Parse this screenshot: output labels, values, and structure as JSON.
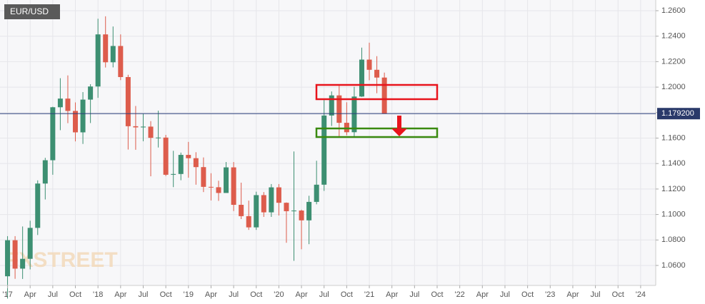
{
  "chart_data": {
    "type": "candlestick",
    "title": "EUR/USD",
    "watermark": "FXSTREET",
    "x": [
      "2017-01",
      "2017-02",
      "2017-03",
      "2017-04",
      "2017-05",
      "2017-06",
      "2017-07",
      "2017-08",
      "2017-09",
      "2017-10",
      "2017-11",
      "2017-12",
      "2018-01",
      "2018-02",
      "2018-03",
      "2018-04",
      "2018-05",
      "2018-06",
      "2018-07",
      "2018-08",
      "2018-09",
      "2018-10",
      "2018-11",
      "2018-12",
      "2019-01",
      "2019-02",
      "2019-03",
      "2019-04",
      "2019-05",
      "2019-06",
      "2019-07",
      "2019-08",
      "2019-09",
      "2019-10",
      "2019-11",
      "2019-12",
      "2020-01",
      "2020-02",
      "2020-03",
      "2020-04",
      "2020-05",
      "2020-06",
      "2020-07",
      "2020-08",
      "2020-09",
      "2020-10",
      "2020-11",
      "2020-12",
      "2021-01",
      "2021-02",
      "2021-03"
    ],
    "open": [
      1.0515,
      1.0798,
      1.0575,
      1.0652,
      1.0895,
      1.1243,
      1.1426,
      1.1842,
      1.191,
      1.1813,
      1.1645,
      1.1902,
      1.2005,
      1.2414,
      1.2195,
      1.2323,
      1.2079,
      1.1693,
      1.1684,
      1.169,
      1.1602,
      1.1604,
      1.1312,
      1.1318,
      1.1468,
      1.1442,
      1.1372,
      1.1217,
      1.1214,
      1.1169,
      1.137,
      1.1076,
      1.0987,
      1.0899,
      1.1152,
      1.1017,
      1.1213,
      1.1092,
      1.1026,
      1.1031,
      1.0954,
      1.1099,
      1.1234,
      1.1777,
      1.1935,
      1.172,
      1.1646,
      1.1926,
      1.2216,
      1.2136,
      1.2075
    ],
    "high": [
      1.083,
      1.083,
      1.0906,
      1.0951,
      1.1268,
      1.1445,
      1.1846,
      1.207,
      1.2092,
      1.188,
      1.1961,
      1.2023,
      1.2537,
      1.2556,
      1.2476,
      1.2414,
      1.2097,
      1.1852,
      1.1791,
      1.1733,
      1.1815,
      1.1625,
      1.15,
      1.1486,
      1.157,
      1.1489,
      1.1448,
      1.1324,
      1.1265,
      1.1412,
      1.1412,
      1.125,
      1.1109,
      1.1179,
      1.1176,
      1.1239,
      1.1239,
      1.1095,
      1.1495,
      1.1038,
      1.1147,
      1.1422,
      1.1908,
      1.1966,
      1.2011,
      1.1881,
      1.2003,
      1.231,
      1.2349,
      1.2243,
      1.2114
    ],
    "low": [
      1.034,
      1.0495,
      1.0494,
      1.0569,
      1.0839,
      1.1118,
      1.1312,
      1.1662,
      1.1717,
      1.1574,
      1.1554,
      1.1718,
      1.1916,
      1.2154,
      1.2155,
      1.2055,
      1.151,
      1.1508,
      1.1575,
      1.13,
      1.1526,
      1.1302,
      1.1215,
      1.1269,
      1.1289,
      1.1234,
      1.1176,
      1.111,
      1.1107,
      1.1181,
      1.1027,
      1.0964,
      1.0879,
      1.0879,
      1.0981,
      1.0981,
      1.0992,
      1.0778,
      1.0636,
      1.0727,
      1.0767,
      1.108,
      1.1185,
      1.1695,
      1.1612,
      1.1622,
      1.1603,
      1.1923,
      1.2054,
      1.1952,
      1.1792
    ],
    "close": [
      1.0798,
      1.0575,
      1.0652,
      1.0895,
      1.1243,
      1.1426,
      1.1842,
      1.191,
      1.1813,
      1.1645,
      1.1902,
      1.2005,
      1.2414,
      1.2195,
      1.2323,
      1.2079,
      1.1693,
      1.1684,
      1.169,
      1.1602,
      1.1604,
      1.1312,
      1.1318,
      1.1468,
      1.1442,
      1.1372,
      1.1217,
      1.1214,
      1.1169,
      1.137,
      1.1076,
      1.0987,
      1.0899,
      1.1152,
      1.1017,
      1.1213,
      1.1092,
      1.1026,
      1.1031,
      1.0954,
      1.1099,
      1.1234,
      1.1777,
      1.1935,
      1.172,
      1.1646,
      1.1926,
      1.2216,
      1.2136,
      1.2075,
      1.1792
    ],
    "up_color": "#3d8f72",
    "down_color": "#dd5c4c",
    "last_price": {
      "value": 1.1792,
      "label": "1.179200"
    },
    "xlim": [
      "2016-12",
      "2024-03"
    ],
    "xticks": [
      {
        "value": "2017-01",
        "label": "'17"
      },
      {
        "value": "2017-04",
        "label": "Apr"
      },
      {
        "value": "2017-07",
        "label": "Jul"
      },
      {
        "value": "2017-10",
        "label": "Oct"
      },
      {
        "value": "2018-01",
        "label": "'18"
      },
      {
        "value": "2018-04",
        "label": "Apr"
      },
      {
        "value": "2018-07",
        "label": "Jul"
      },
      {
        "value": "2018-10",
        "label": "Oct"
      },
      {
        "value": "2019-01",
        "label": "'19"
      },
      {
        "value": "2019-04",
        "label": "Apr"
      },
      {
        "value": "2019-07",
        "label": "Jul"
      },
      {
        "value": "2019-10",
        "label": "Oct"
      },
      {
        "value": "2020-01",
        "label": "'20"
      },
      {
        "value": "2020-04",
        "label": "Apr"
      },
      {
        "value": "2020-07",
        "label": "Jul"
      },
      {
        "value": "2020-10",
        "label": "Oct"
      },
      {
        "value": "2021-01",
        "label": "'21"
      },
      {
        "value": "2021-04",
        "label": "Apr"
      },
      {
        "value": "2021-07",
        "label": "Jul"
      },
      {
        "value": "2021-10",
        "label": "Oct"
      },
      {
        "value": "2022-01",
        "label": "'22"
      },
      {
        "value": "2022-04",
        "label": "Apr"
      },
      {
        "value": "2022-07",
        "label": "Jul"
      },
      {
        "value": "2022-10",
        "label": "Oct"
      },
      {
        "value": "2023-01",
        "label": "'23"
      },
      {
        "value": "2023-04",
        "label": "Apr"
      },
      {
        "value": "2023-07",
        "label": "Jul"
      },
      {
        "value": "2023-10",
        "label": "Oct"
      },
      {
        "value": "2024-01",
        "label": "'24"
      }
    ],
    "ylim": [
      1.0443,
      1.2684
    ],
    "yticks": [
      {
        "value": 1.06,
        "label": "1.0600"
      },
      {
        "value": 1.08,
        "label": "1.0800"
      },
      {
        "value": 1.1,
        "label": "1.1000"
      },
      {
        "value": 1.12,
        "label": "1.1200"
      },
      {
        "value": 1.14,
        "label": "1.1400"
      },
      {
        "value": 1.16,
        "label": "1.1600"
      },
      {
        "value": 1.18,
        "label": "1.1800"
      },
      {
        "value": 1.2,
        "label": "1.2000"
      },
      {
        "value": 1.22,
        "label": "1.2200"
      },
      {
        "value": 1.24,
        "label": "1.2400"
      },
      {
        "value": 1.26,
        "label": "1.2600"
      }
    ],
    "grid": true
  }
}
